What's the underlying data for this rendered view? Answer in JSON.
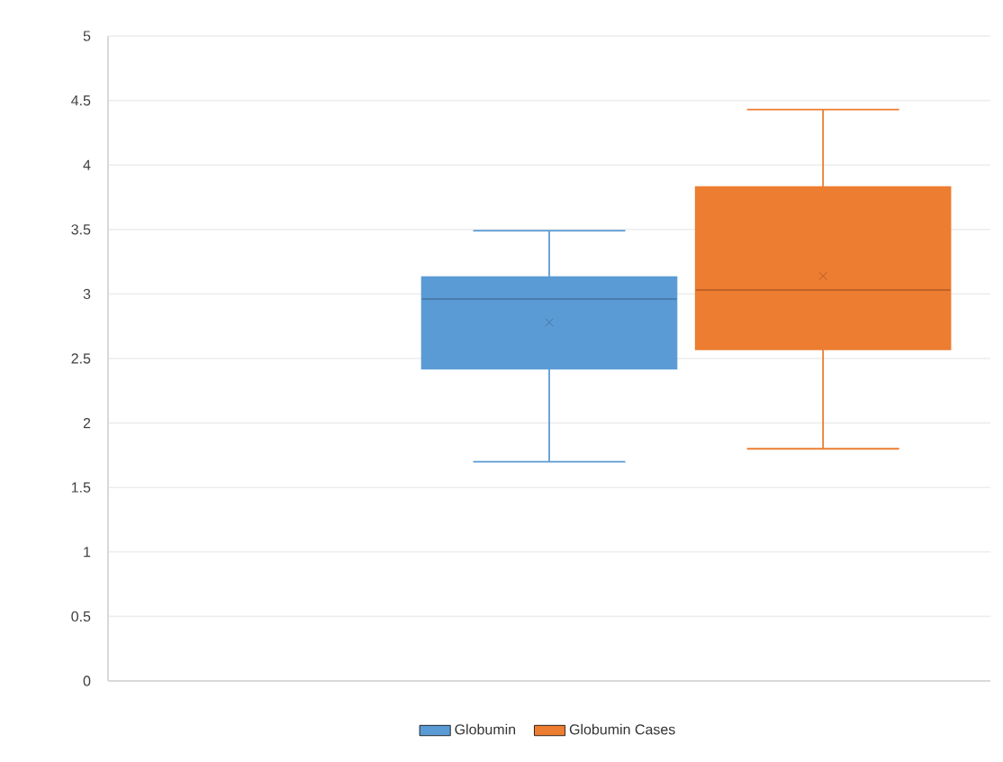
{
  "chart_data": {
    "type": "box",
    "categories": [
      null
    ],
    "series": [
      {
        "name": "Globumin",
        "color": "#5b9bd5",
        "boxes": [
          {
            "low": 1.7,
            "q1": 2.42,
            "median": 2.96,
            "q3": 3.13,
            "high": 3.49,
            "mean": 2.78
          }
        ]
      },
      {
        "name": "Globumin Cases",
        "color": "#ed7d31",
        "boxes": [
          {
            "low": 1.8,
            "q1": 2.57,
            "median": 3.03,
            "q3": 3.83,
            "high": 4.43,
            "mean": 3.14
          }
        ]
      }
    ],
    "ylim": [
      0,
      5
    ],
    "yticks": [
      0,
      0.5,
      1,
      1.5,
      2,
      2.5,
      3,
      3.5,
      4,
      4.5,
      5
    ],
    "grid": "y",
    "legend": "bottom",
    "marker": "cross"
  }
}
